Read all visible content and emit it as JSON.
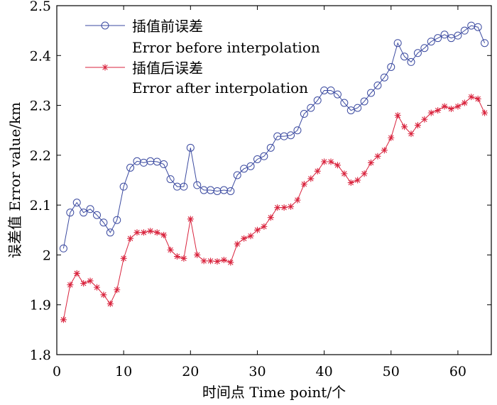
{
  "chart_data": {
    "type": "line",
    "title": "",
    "xlabel": "时间点 Time point/个",
    "ylabel": "误差值 Error value/km",
    "xlim": [
      0,
      65
    ],
    "ylim": [
      1.8,
      2.5
    ],
    "xticks": [
      "0",
      "10",
      "20",
      "30",
      "40",
      "50",
      "60"
    ],
    "yticks": [
      "1.8",
      "1.9",
      "2",
      "2.1",
      "2.2",
      "2.3",
      "2.4",
      "2.5"
    ],
    "grid": false,
    "legend_position": "top-left",
    "x": [
      1,
      2,
      3,
      4,
      5,
      6,
      7,
      8,
      9,
      10,
      11,
      12,
      13,
      14,
      15,
      16,
      17,
      18,
      19,
      20,
      21,
      22,
      23,
      24,
      25,
      26,
      27,
      28,
      29,
      30,
      31,
      32,
      33,
      34,
      35,
      36,
      37,
      38,
      39,
      40,
      41,
      42,
      43,
      44,
      45,
      46,
      47,
      48,
      49,
      50,
      51,
      52,
      53,
      54,
      55,
      56,
      57,
      58,
      59,
      60,
      61,
      62,
      63,
      64
    ],
    "series": [
      {
        "name": "插值前误差",
        "name_en": "Error before interpolation",
        "color": "#3b4aa0",
        "marker": "circle",
        "values": [
          2.013,
          2.085,
          2.105,
          2.085,
          2.092,
          2.08,
          2.065,
          2.045,
          2.07,
          2.137,
          2.175,
          2.188,
          2.185,
          2.188,
          2.187,
          2.182,
          2.152,
          2.137,
          2.137,
          2.215,
          2.14,
          2.13,
          2.13,
          2.128,
          2.13,
          2.128,
          2.16,
          2.173,
          2.178,
          2.192,
          2.198,
          2.215,
          2.238,
          2.238,
          2.24,
          2.25,
          2.283,
          2.295,
          2.31,
          2.33,
          2.33,
          2.322,
          2.305,
          2.29,
          2.295,
          2.308,
          2.325,
          2.34,
          2.356,
          2.377,
          2.425,
          2.398,
          2.387,
          2.405,
          2.415,
          2.428,
          2.435,
          2.442,
          2.435,
          2.44,
          2.45,
          2.46,
          2.457,
          2.425
        ]
      },
      {
        "name": "插值后误差",
        "name_en": "Error after interpolation",
        "color": "#d9233d",
        "marker": "star",
        "values": [
          1.87,
          1.94,
          1.963,
          1.943,
          1.948,
          1.935,
          1.92,
          1.902,
          1.93,
          1.993,
          2.033,
          2.045,
          2.045,
          2.048,
          2.045,
          2.04,
          2.01,
          1.997,
          1.993,
          2.072,
          2.0,
          1.988,
          1.988,
          1.987,
          1.99,
          1.985,
          2.022,
          2.033,
          2.038,
          2.05,
          2.057,
          2.075,
          2.095,
          2.095,
          2.097,
          2.11,
          2.142,
          2.153,
          2.168,
          2.187,
          2.187,
          2.18,
          2.163,
          2.145,
          2.15,
          2.163,
          2.185,
          2.198,
          2.21,
          2.235,
          2.28,
          2.257,
          2.243,
          2.26,
          2.272,
          2.285,
          2.29,
          2.298,
          2.293,
          2.298,
          2.305,
          2.317,
          2.313,
          2.285
        ]
      }
    ]
  }
}
